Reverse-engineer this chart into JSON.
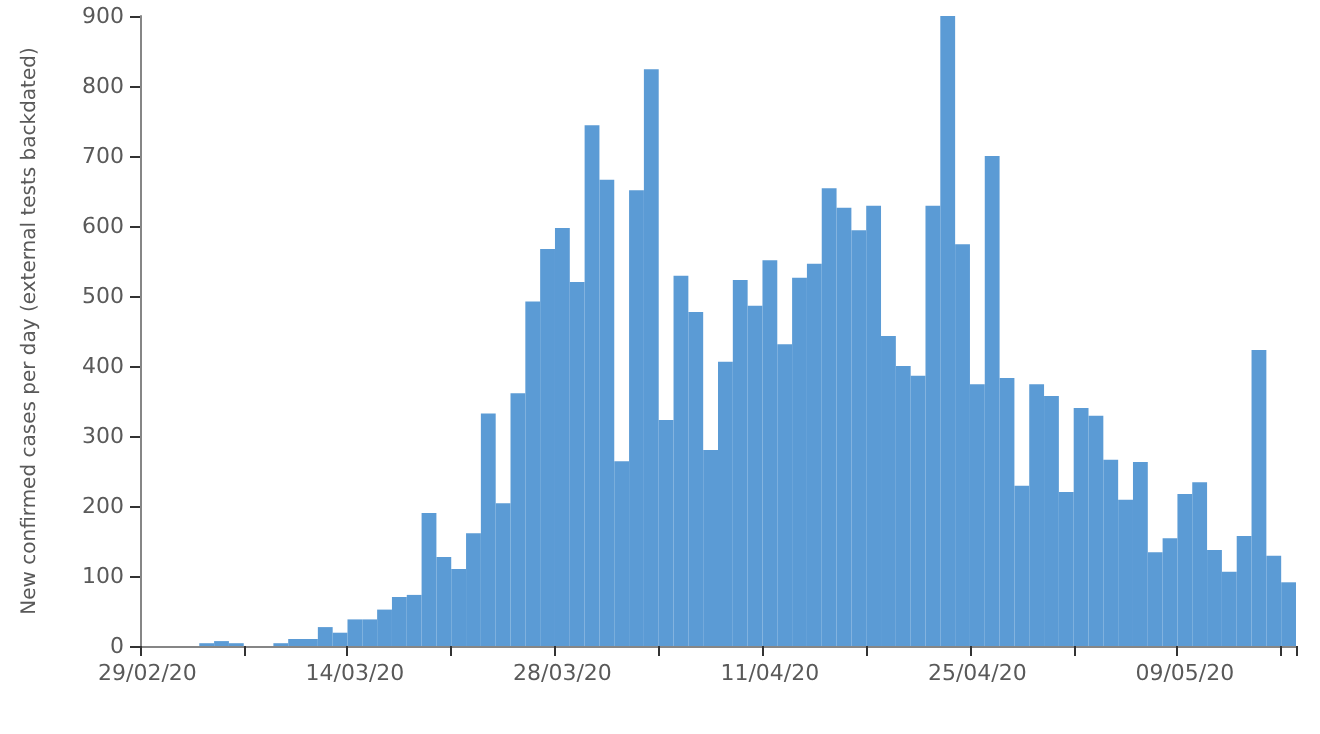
{
  "chart_data": {
    "type": "bar",
    "ylabel": "New confirmed cases per day (external tests backdated)",
    "categories": [
      "29/02/20",
      null,
      null,
      null,
      null,
      null,
      null,
      null,
      null,
      null,
      null,
      null,
      null,
      null,
      "14/03/20",
      null,
      null,
      null,
      null,
      null,
      null,
      null,
      null,
      null,
      null,
      null,
      null,
      null,
      "28/03/20",
      null,
      null,
      null,
      null,
      null,
      null,
      null,
      null,
      null,
      null,
      null,
      null,
      null,
      "11/04/20",
      null,
      null,
      null,
      null,
      null,
      null,
      null,
      null,
      null,
      null,
      null,
      null,
      null,
      "25/04/20",
      null,
      null,
      null,
      null,
      null,
      null,
      null,
      null,
      null,
      null,
      null,
      null,
      null,
      "09/05/20",
      null,
      null,
      null,
      null,
      null,
      null,
      null
    ],
    "values": [
      0,
      0,
      0,
      0,
      4,
      7,
      4,
      0,
      0,
      4,
      10,
      10,
      27,
      19,
      38,
      38,
      52,
      70,
      73,
      190,
      127,
      110,
      161,
      332,
      204,
      361,
      492,
      567,
      597,
      520,
      744,
      666,
      264,
      651,
      824,
      323,
      529,
      477,
      280,
      406,
      523,
      486,
      551,
      431,
      526,
      546,
      654,
      626,
      594,
      629,
      443,
      400,
      386,
      629,
      900,
      574,
      374,
      700,
      383,
      229,
      374,
      357,
      220,
      340,
      329,
      266,
      209,
      263,
      134,
      154,
      217,
      234,
      137,
      106,
      157,
      423,
      129,
      91
    ],
    "color": "#5b9bd5",
    "ylim": [
      0,
      900
    ],
    "yticks": [
      0,
      100,
      200,
      300,
      400,
      500,
      600,
      700,
      800,
      900
    ],
    "grid": false
  }
}
